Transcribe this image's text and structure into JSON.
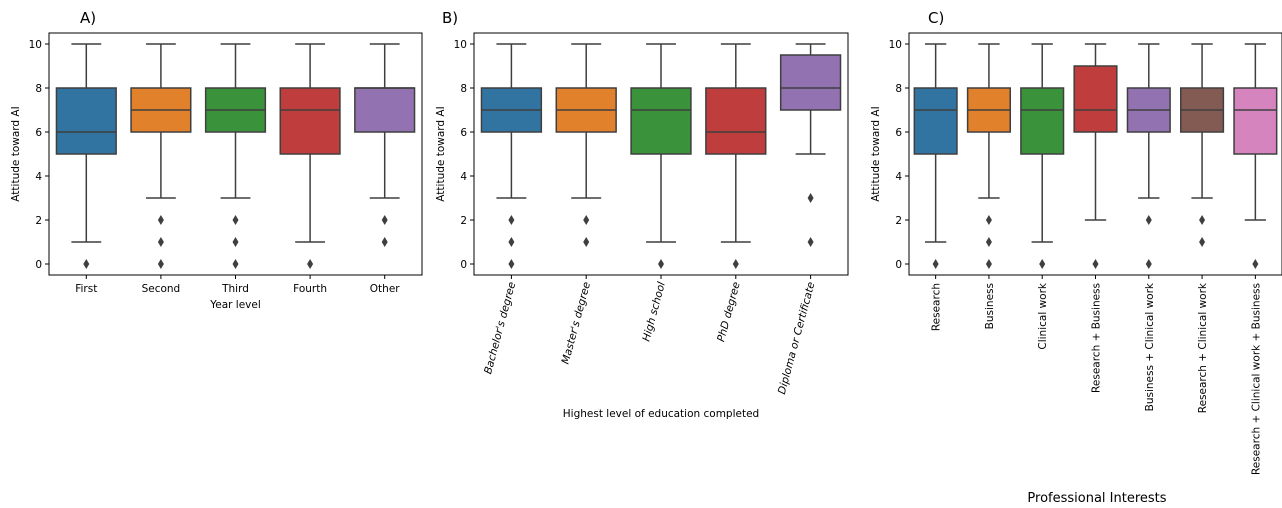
{
  "chart_data": [
    {
      "type": "box",
      "panel_letter": "A)",
      "xlabel": "Year level",
      "ylabel": "Attitude toward AI",
      "ylim": [
        -0.5,
        10.5
      ],
      "yticks": [
        0,
        2,
        4,
        6,
        8,
        10
      ],
      "grid": false,
      "tick_rotation": 0,
      "categories": [
        "First",
        "Second",
        "Third",
        "Fourth",
        "Other"
      ],
      "colors": [
        "#3274a1",
        "#e1812c",
        "#3a923a",
        "#c03d3e",
        "#9372b2"
      ],
      "boxes": [
        {
          "q1": 5,
          "median": 6,
          "q3": 8,
          "whisker_low": 1,
          "whisker_high": 10,
          "outliers": [
            0
          ]
        },
        {
          "q1": 6,
          "median": 7,
          "q3": 8,
          "whisker_low": 3,
          "whisker_high": 10,
          "outliers": [
            2,
            1,
            0
          ]
        },
        {
          "q1": 6,
          "median": 7,
          "q3": 8,
          "whisker_low": 3,
          "whisker_high": 10,
          "outliers": [
            2,
            1,
            0
          ]
        },
        {
          "q1": 5,
          "median": 7,
          "q3": 8,
          "whisker_low": 1,
          "whisker_high": 10,
          "outliers": [
            0
          ]
        },
        {
          "q1": 6,
          "median": 8,
          "q3": 8,
          "whisker_low": 3,
          "whisker_high": 10,
          "outliers": [
            2,
            1
          ]
        }
      ]
    },
    {
      "type": "box",
      "panel_letter": "B)",
      "xlabel": "Highest level of education completed",
      "ylabel": "Attitude toward AI",
      "ylim": [
        -0.5,
        10.5
      ],
      "yticks": [
        0,
        2,
        4,
        6,
        8,
        10
      ],
      "grid": false,
      "tick_rotation": -75,
      "tick_italic": true,
      "categories": [
        "Bachelor's degree",
        "Master's degree",
        "High school",
        "PhD degree",
        "Diploma or Certificate"
      ],
      "colors": [
        "#3274a1",
        "#e1812c",
        "#3a923a",
        "#c03d3e",
        "#9372b2"
      ],
      "boxes": [
        {
          "q1": 6,
          "median": 7,
          "q3": 8,
          "whisker_low": 3,
          "whisker_high": 10,
          "outliers": [
            2,
            1,
            0
          ]
        },
        {
          "q1": 6,
          "median": 7,
          "q3": 8,
          "whisker_low": 3,
          "whisker_high": 10,
          "outliers": [
            2,
            1
          ]
        },
        {
          "q1": 5,
          "median": 7,
          "q3": 8,
          "whisker_low": 1,
          "whisker_high": 10,
          "outliers": [
            0
          ]
        },
        {
          "q1": 5,
          "median": 6,
          "q3": 8,
          "whisker_low": 1,
          "whisker_high": 10,
          "outliers": [
            0
          ]
        },
        {
          "q1": 7,
          "median": 8,
          "q3": 9.5,
          "whisker_low": 5,
          "whisker_high": 10,
          "outliers": [
            3,
            1
          ]
        }
      ]
    },
    {
      "type": "box",
      "panel_letter": "C)",
      "xlabel": "Professional Interests",
      "ylabel": "Attitude toward AI",
      "ylim": [
        -0.5,
        10.5
      ],
      "yticks": [
        0,
        2,
        4,
        6,
        8,
        10
      ],
      "grid": false,
      "tick_rotation": -90,
      "tick_italic": false,
      "categories": [
        "Research",
        "Business",
        "Clinical work",
        "Research + Business",
        "Business + Clinical work",
        "Research + Clinical work",
        "Research + Clinical work + Business"
      ],
      "colors": [
        "#3274a1",
        "#e1812c",
        "#3a923a",
        "#c03d3e",
        "#9372b2",
        "#845b53",
        "#d684bd"
      ],
      "boxes": [
        {
          "q1": 5,
          "median": 7,
          "q3": 8,
          "whisker_low": 1,
          "whisker_high": 10,
          "outliers": [
            0
          ]
        },
        {
          "q1": 6,
          "median": 7,
          "q3": 8,
          "whisker_low": 3,
          "whisker_high": 10,
          "outliers": [
            2,
            1,
            0
          ]
        },
        {
          "q1": 5,
          "median": 7,
          "q3": 8,
          "whisker_low": 1,
          "whisker_high": 10,
          "outliers": [
            0
          ]
        },
        {
          "q1": 6,
          "median": 7,
          "q3": 9,
          "whisker_low": 2,
          "whisker_high": 10,
          "outliers": [
            0
          ]
        },
        {
          "q1": 6,
          "median": 7,
          "q3": 8,
          "whisker_low": 3,
          "whisker_high": 10,
          "outliers": [
            2,
            0
          ]
        },
        {
          "q1": 6,
          "median": 7,
          "q3": 8,
          "whisker_low": 3,
          "whisker_high": 10,
          "outliers": [
            2,
            1
          ]
        },
        {
          "q1": 5,
          "median": 7,
          "q3": 8,
          "whisker_low": 2,
          "whisker_high": 10,
          "outliers": [
            0
          ]
        }
      ]
    }
  ]
}
